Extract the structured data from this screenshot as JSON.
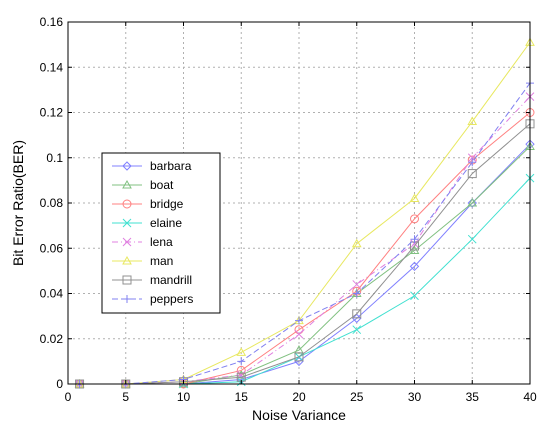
{
  "chart_data": {
    "type": "line",
    "xlabel": "Noise Variance",
    "ylabel": "Bit Error Ratio(BER)",
    "xlim": [
      0,
      40
    ],
    "ylim": [
      0,
      0.16
    ],
    "xticks": [
      "0",
      "5",
      "10",
      "15",
      "20",
      "25",
      "30",
      "35",
      "40"
    ],
    "yticks": [
      "0",
      "0.02",
      "0.04",
      "0.06",
      "0.08",
      "0.1",
      "0.12",
      "0.14",
      "0.16"
    ],
    "grid": true,
    "legend_position": "left-middle",
    "x": [
      1,
      5,
      10,
      15,
      20,
      25,
      30,
      35,
      40
    ],
    "series": [
      {
        "name": "barbara",
        "color": "#8080ff",
        "marker": "diamond",
        "dash": "solid",
        "values": [
          0,
          0,
          0,
          0.002,
          0.01,
          0.029,
          0.052,
          0.08,
          0.106
        ]
      },
      {
        "name": "boat",
        "color": "#80c080",
        "marker": "triangle",
        "dash": "solid",
        "values": [
          0,
          0,
          0,
          0.004,
          0.015,
          0.04,
          0.059,
          0.08,
          0.105
        ]
      },
      {
        "name": "bridge",
        "color": "#ff8080",
        "marker": "circle",
        "dash": "solid",
        "values": [
          0,
          0,
          0,
          0.006,
          0.024,
          0.041,
          0.073,
          0.099,
          0.12
        ]
      },
      {
        "name": "elaine",
        "color": "#40e0d0",
        "marker": "x",
        "dash": "solid",
        "values": [
          0,
          0,
          0,
          0.001,
          0.012,
          0.024,
          0.039,
          0.064,
          0.091
        ]
      },
      {
        "name": "lena",
        "color": "#e080e0",
        "marker": "x",
        "dash": "dashdot",
        "values": [
          0,
          0,
          0.001,
          0.004,
          0.022,
          0.044,
          0.062,
          0.1,
          0.127
        ]
      },
      {
        "name": "man",
        "color": "#e8e860",
        "marker": "triangle",
        "dash": "solid",
        "values": [
          0,
          0,
          0.002,
          0.014,
          0.028,
          0.062,
          0.082,
          0.116,
          0.151
        ]
      },
      {
        "name": "mandrill",
        "color": "#909090",
        "marker": "square",
        "dash": "solid",
        "values": [
          0,
          0,
          0.001,
          0.003,
          0.012,
          0.031,
          0.061,
          0.093,
          0.115
        ]
      },
      {
        "name": "peppers",
        "color": "#8080f0",
        "marker": "plus",
        "dash": "dashed",
        "values": [
          0,
          0,
          0.002,
          0.01,
          0.028,
          0.04,
          0.064,
          0.098,
          0.133
        ]
      }
    ]
  }
}
